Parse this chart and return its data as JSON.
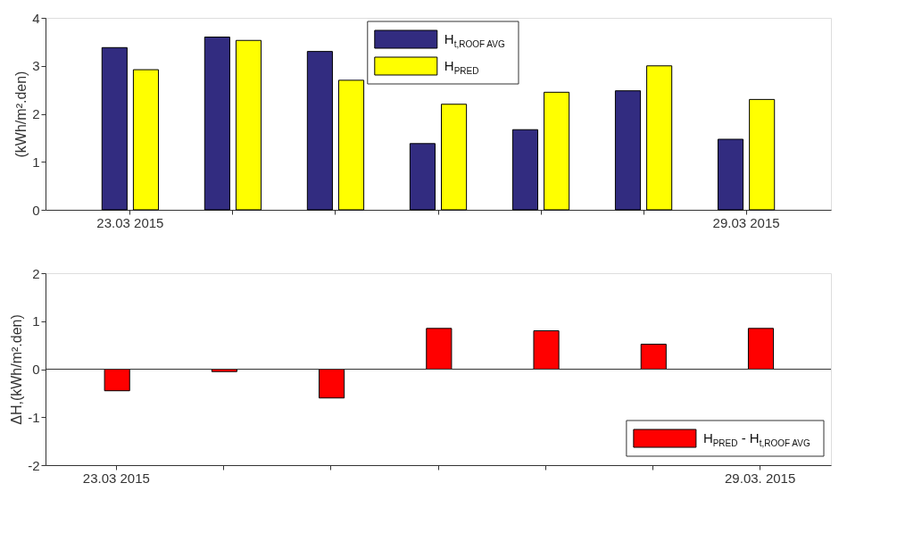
{
  "chart_data": [
    {
      "type": "bar",
      "categories": [
        "23.03 2015",
        null,
        null,
        null,
        null,
        null,
        "29.03 2015"
      ],
      "ylabel": "(kWh/m².den)",
      "ylim": [
        0,
        4
      ],
      "yticks": [
        0,
        1,
        2,
        3,
        4
      ],
      "legend": "top",
      "grid": false,
      "series": [
        {
          "name": "H$_{t,ROOF AVG}$",
          "color": "#322c80",
          "values": [
            3.38,
            3.6,
            3.3,
            1.38,
            1.67,
            2.48,
            1.47
          ]
        },
        {
          "name": "H$_{PRED}$",
          "color": "#ffff00",
          "values": [
            2.92,
            3.53,
            2.7,
            2.2,
            2.45,
            3.0,
            2.3
          ]
        }
      ]
    },
    {
      "type": "bar",
      "categories": [
        "23.03 2015",
        null,
        null,
        null,
        null,
        null,
        "29.03. 2015"
      ],
      "ylabel": "ΔH,(kWh/m².den)",
      "ylim": [
        -2,
        2
      ],
      "yticks": [
        -2,
        -1,
        0,
        1,
        2
      ],
      "legend": "bottom right",
      "grid": false,
      "ref_lines": [
        {
          "axis": "y",
          "value": 0
        }
      ],
      "series": [
        {
          "name": "H$_{PRED}$ - H$_{t,ROOF AVG}$",
          "color": "#ff0000",
          "values": [
            -0.45,
            -0.05,
            -0.6,
            0.85,
            0.8,
            0.52,
            0.85
          ]
        }
      ]
    }
  ]
}
